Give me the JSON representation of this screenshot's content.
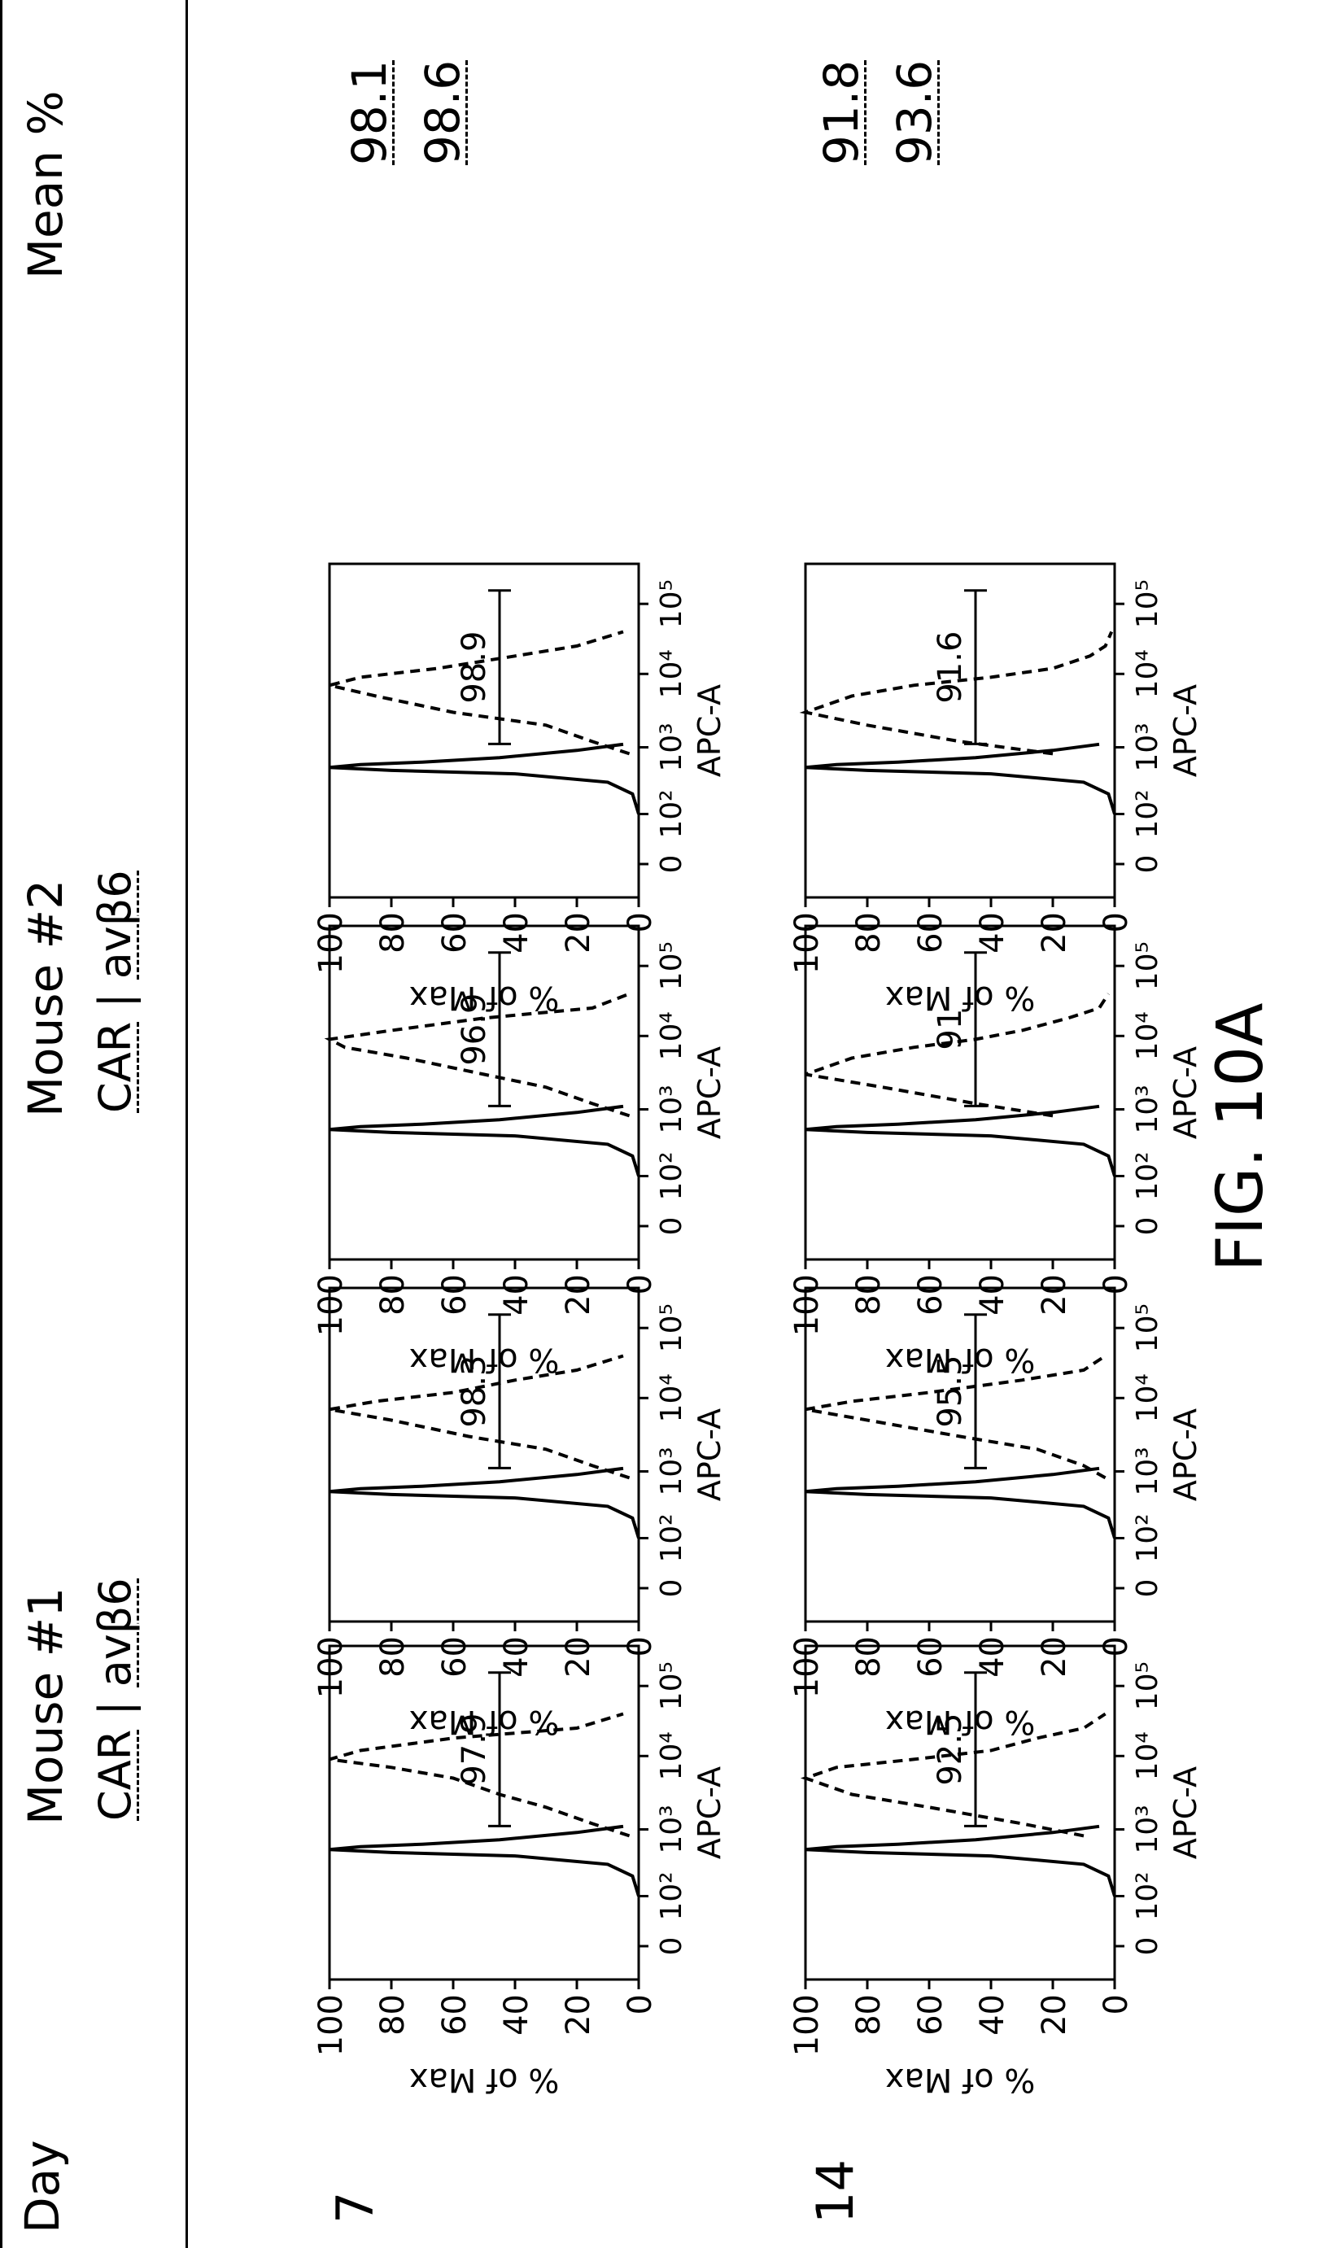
{
  "headers": {
    "day": "Day",
    "mouse1": "Mouse #1",
    "mouse2": "Mouse #2",
    "mean": "Mean %"
  },
  "legend": {
    "car": "CAR",
    "separator": "|",
    "avb6": "avβ6"
  },
  "days": [
    "7",
    "14"
  ],
  "means": {
    "day7": [
      "98.1",
      "98.6"
    ],
    "day14": [
      "91.8",
      "93.6"
    ]
  },
  "figure_label": "FIG. 10A",
  "chart_data": [
    {
      "type": "line",
      "day": "7",
      "mouse": "Mouse #1",
      "xlabel": "APC-A",
      "ylabel": "% of Max",
      "gate_label": "97.9",
      "x_scale": "log",
      "xticks": [
        "0",
        "10²",
        "10³",
        "10⁴",
        "10⁵"
      ],
      "ylim": [
        0,
        100
      ],
      "yticks": [
        0,
        20,
        40,
        60,
        80,
        100
      ],
      "series": [
        {
          "name": "CAR",
          "line": "solid",
          "x": [
            100,
            200,
            300,
            400,
            450,
            500,
            550,
            600,
            700,
            900,
            1100
          ],
          "y": [
            0,
            2,
            10,
            40,
            80,
            100,
            90,
            70,
            45,
            20,
            5
          ]
        },
        {
          "name": "avβ6",
          "line": "dashed",
          "x": [
            800,
            1200,
            2000,
            3000,
            5000,
            7000,
            9000,
            12000,
            18000,
            25000,
            40000
          ],
          "y": [
            3,
            15,
            30,
            45,
            60,
            80,
            100,
            90,
            60,
            20,
            5
          ]
        }
      ]
    },
    {
      "type": "line",
      "day": "7",
      "mouse": "Mouse #1",
      "xlabel": "APC-A",
      "ylabel": "% of Max",
      "gate_label": "98.3",
      "x_scale": "log",
      "xticks": [
        "0",
        "10²",
        "10³",
        "10⁴",
        "10⁵"
      ],
      "ylim": [
        0,
        100
      ],
      "yticks": [
        0,
        20,
        40,
        60,
        80,
        100
      ],
      "series": [
        {
          "name": "CAR",
          "line": "solid",
          "x": [
            100,
            200,
            300,
            400,
            450,
            500,
            550,
            600,
            700,
            900,
            1100
          ],
          "y": [
            0,
            2,
            10,
            40,
            80,
            100,
            90,
            70,
            45,
            20,
            5
          ]
        },
        {
          "name": "avβ6",
          "line": "dashed",
          "x": [
            800,
            1200,
            2000,
            3000,
            5000,
            7000,
            9000,
            12000,
            18000,
            25000,
            40000
          ],
          "y": [
            3,
            15,
            30,
            55,
            80,
            100,
            85,
            60,
            40,
            20,
            5
          ]
        }
      ]
    },
    {
      "type": "line",
      "day": "7",
      "mouse": "Mouse #2",
      "xlabel": "APC-A",
      "ylabel": "% of Max",
      "gate_label": "96.9",
      "x_scale": "log",
      "xticks": [
        "0",
        "10²",
        "10³",
        "10⁴",
        "10⁵"
      ],
      "ylim": [
        0,
        100
      ],
      "yticks": [
        0,
        20,
        40,
        60,
        80,
        100
      ],
      "series": [
        {
          "name": "CAR",
          "line": "solid",
          "x": [
            100,
            200,
            300,
            400,
            450,
            500,
            550,
            600,
            700,
            900,
            1100
          ],
          "y": [
            0,
            2,
            10,
            40,
            80,
            100,
            90,
            70,
            45,
            20,
            5
          ]
        },
        {
          "name": "avβ6",
          "line": "dashed",
          "x": [
            800,
            1200,
            2000,
            3000,
            5000,
            7000,
            9000,
            12000,
            18000,
            25000,
            40000
          ],
          "y": [
            3,
            15,
            30,
            50,
            75,
            95,
            100,
            80,
            50,
            15,
            3
          ]
        }
      ]
    },
    {
      "type": "line",
      "day": "7",
      "mouse": "Mouse #2",
      "xlabel": "APC-A",
      "ylabel": "% of Max",
      "gate_label": "98.9",
      "x_scale": "log",
      "xticks": [
        "0",
        "10²",
        "10³",
        "10⁴",
        "10⁵"
      ],
      "ylim": [
        0,
        100
      ],
      "yticks": [
        0,
        20,
        40,
        60,
        80,
        100
      ],
      "series": [
        {
          "name": "CAR",
          "line": "solid",
          "x": [
            100,
            200,
            300,
            400,
            450,
            500,
            550,
            600,
            700,
            900,
            1100
          ],
          "y": [
            0,
            2,
            10,
            40,
            80,
            100,
            90,
            70,
            45,
            20,
            5
          ]
        },
        {
          "name": "avβ6",
          "line": "dashed",
          "x": [
            800,
            1200,
            2000,
            3000,
            5000,
            7000,
            9000,
            12000,
            18000,
            25000,
            40000
          ],
          "y": [
            3,
            15,
            30,
            60,
            85,
            100,
            90,
            65,
            40,
            20,
            5
          ]
        }
      ]
    },
    {
      "type": "line",
      "day": "14",
      "mouse": "Mouse #1",
      "xlabel": "APC-A",
      "ylabel": "% of Max",
      "gate_label": "92.5",
      "x_scale": "log",
      "xticks": [
        "0",
        "10²",
        "10³",
        "10⁴",
        "10⁵"
      ],
      "ylim": [
        0,
        100
      ],
      "yticks": [
        0,
        20,
        40,
        60,
        80,
        100
      ],
      "series": [
        {
          "name": "CAR",
          "line": "solid",
          "x": [
            100,
            200,
            300,
            400,
            450,
            500,
            550,
            600,
            700,
            900,
            1100
          ],
          "y": [
            0,
            2,
            10,
            40,
            80,
            100,
            90,
            70,
            45,
            20,
            5
          ]
        },
        {
          "name": "avβ6",
          "line": "dashed",
          "x": [
            800,
            1200,
            2000,
            3000,
            5000,
            7000,
            9000,
            12000,
            18000,
            25000,
            40000
          ],
          "y": [
            10,
            30,
            60,
            85,
            100,
            90,
            65,
            40,
            25,
            10,
            3
          ]
        }
      ]
    },
    {
      "type": "line",
      "day": "14",
      "mouse": "Mouse #1",
      "xlabel": "APC-A",
      "ylabel": "% of Max",
      "gate_label": "95.5",
      "x_scale": "log",
      "xticks": [
        "0",
        "10²",
        "10³",
        "10⁴",
        "10⁵"
      ],
      "ylim": [
        0,
        100
      ],
      "yticks": [
        0,
        20,
        40,
        60,
        80,
        100
      ],
      "series": [
        {
          "name": "CAR",
          "line": "solid",
          "x": [
            100,
            200,
            300,
            400,
            450,
            500,
            550,
            600,
            700,
            900,
            1100
          ],
          "y": [
            0,
            2,
            10,
            40,
            80,
            100,
            90,
            70,
            45,
            20,
            5
          ]
        },
        {
          "name": "avβ6",
          "line": "dashed",
          "x": [
            800,
            1200,
            2000,
            3000,
            5000,
            7000,
            9000,
            12000,
            18000,
            25000,
            40000
          ],
          "y": [
            3,
            10,
            25,
            50,
            80,
            100,
            85,
            60,
            30,
            10,
            3
          ]
        }
      ]
    },
    {
      "type": "line",
      "day": "14",
      "mouse": "Mouse #2",
      "xlabel": "APC-A",
      "ylabel": "% of Max",
      "gate_label": "91",
      "x_scale": "log",
      "xticks": [
        "0",
        "10²",
        "10³",
        "10⁴",
        "10⁵"
      ],
      "ylim": [
        0,
        100
      ],
      "yticks": [
        0,
        20,
        40,
        60,
        80,
        100
      ],
      "series": [
        {
          "name": "CAR",
          "line": "solid",
          "x": [
            100,
            200,
            300,
            400,
            450,
            500,
            550,
            600,
            700,
            900,
            1100
          ],
          "y": [
            0,
            2,
            10,
            40,
            80,
            100,
            90,
            70,
            45,
            20,
            5
          ]
        },
        {
          "name": "avβ6",
          "line": "dashed",
          "x": [
            800,
            1200,
            2000,
            3000,
            5000,
            7000,
            9000,
            12000,
            18000,
            25000,
            40000
          ],
          "y": [
            20,
            45,
            75,
            100,
            85,
            65,
            45,
            30,
            15,
            5,
            2
          ]
        }
      ]
    },
    {
      "type": "line",
      "day": "14",
      "mouse": "Mouse #2",
      "xlabel": "APC-A",
      "ylabel": "% of Max",
      "gate_label": "91.6",
      "x_scale": "log",
      "xticks": [
        "0",
        "10²",
        "10³",
        "10⁴",
        "10⁵"
      ],
      "ylim": [
        0,
        100
      ],
      "yticks": [
        0,
        20,
        40,
        60,
        80,
        100
      ],
      "series": [
        {
          "name": "CAR",
          "line": "solid",
          "x": [
            100,
            200,
            300,
            400,
            450,
            500,
            550,
            600,
            700,
            900,
            1100
          ],
          "y": [
            0,
            2,
            10,
            40,
            80,
            100,
            90,
            70,
            45,
            20,
            5
          ]
        },
        {
          "name": "avβ6",
          "line": "dashed",
          "x": [
            800,
            1200,
            2000,
            3000,
            5000,
            7000,
            9000,
            12000,
            18000,
            25000,
            40000
          ],
          "y": [
            20,
            50,
            80,
            100,
            85,
            65,
            40,
            20,
            8,
            3,
            1
          ]
        }
      ]
    }
  ]
}
